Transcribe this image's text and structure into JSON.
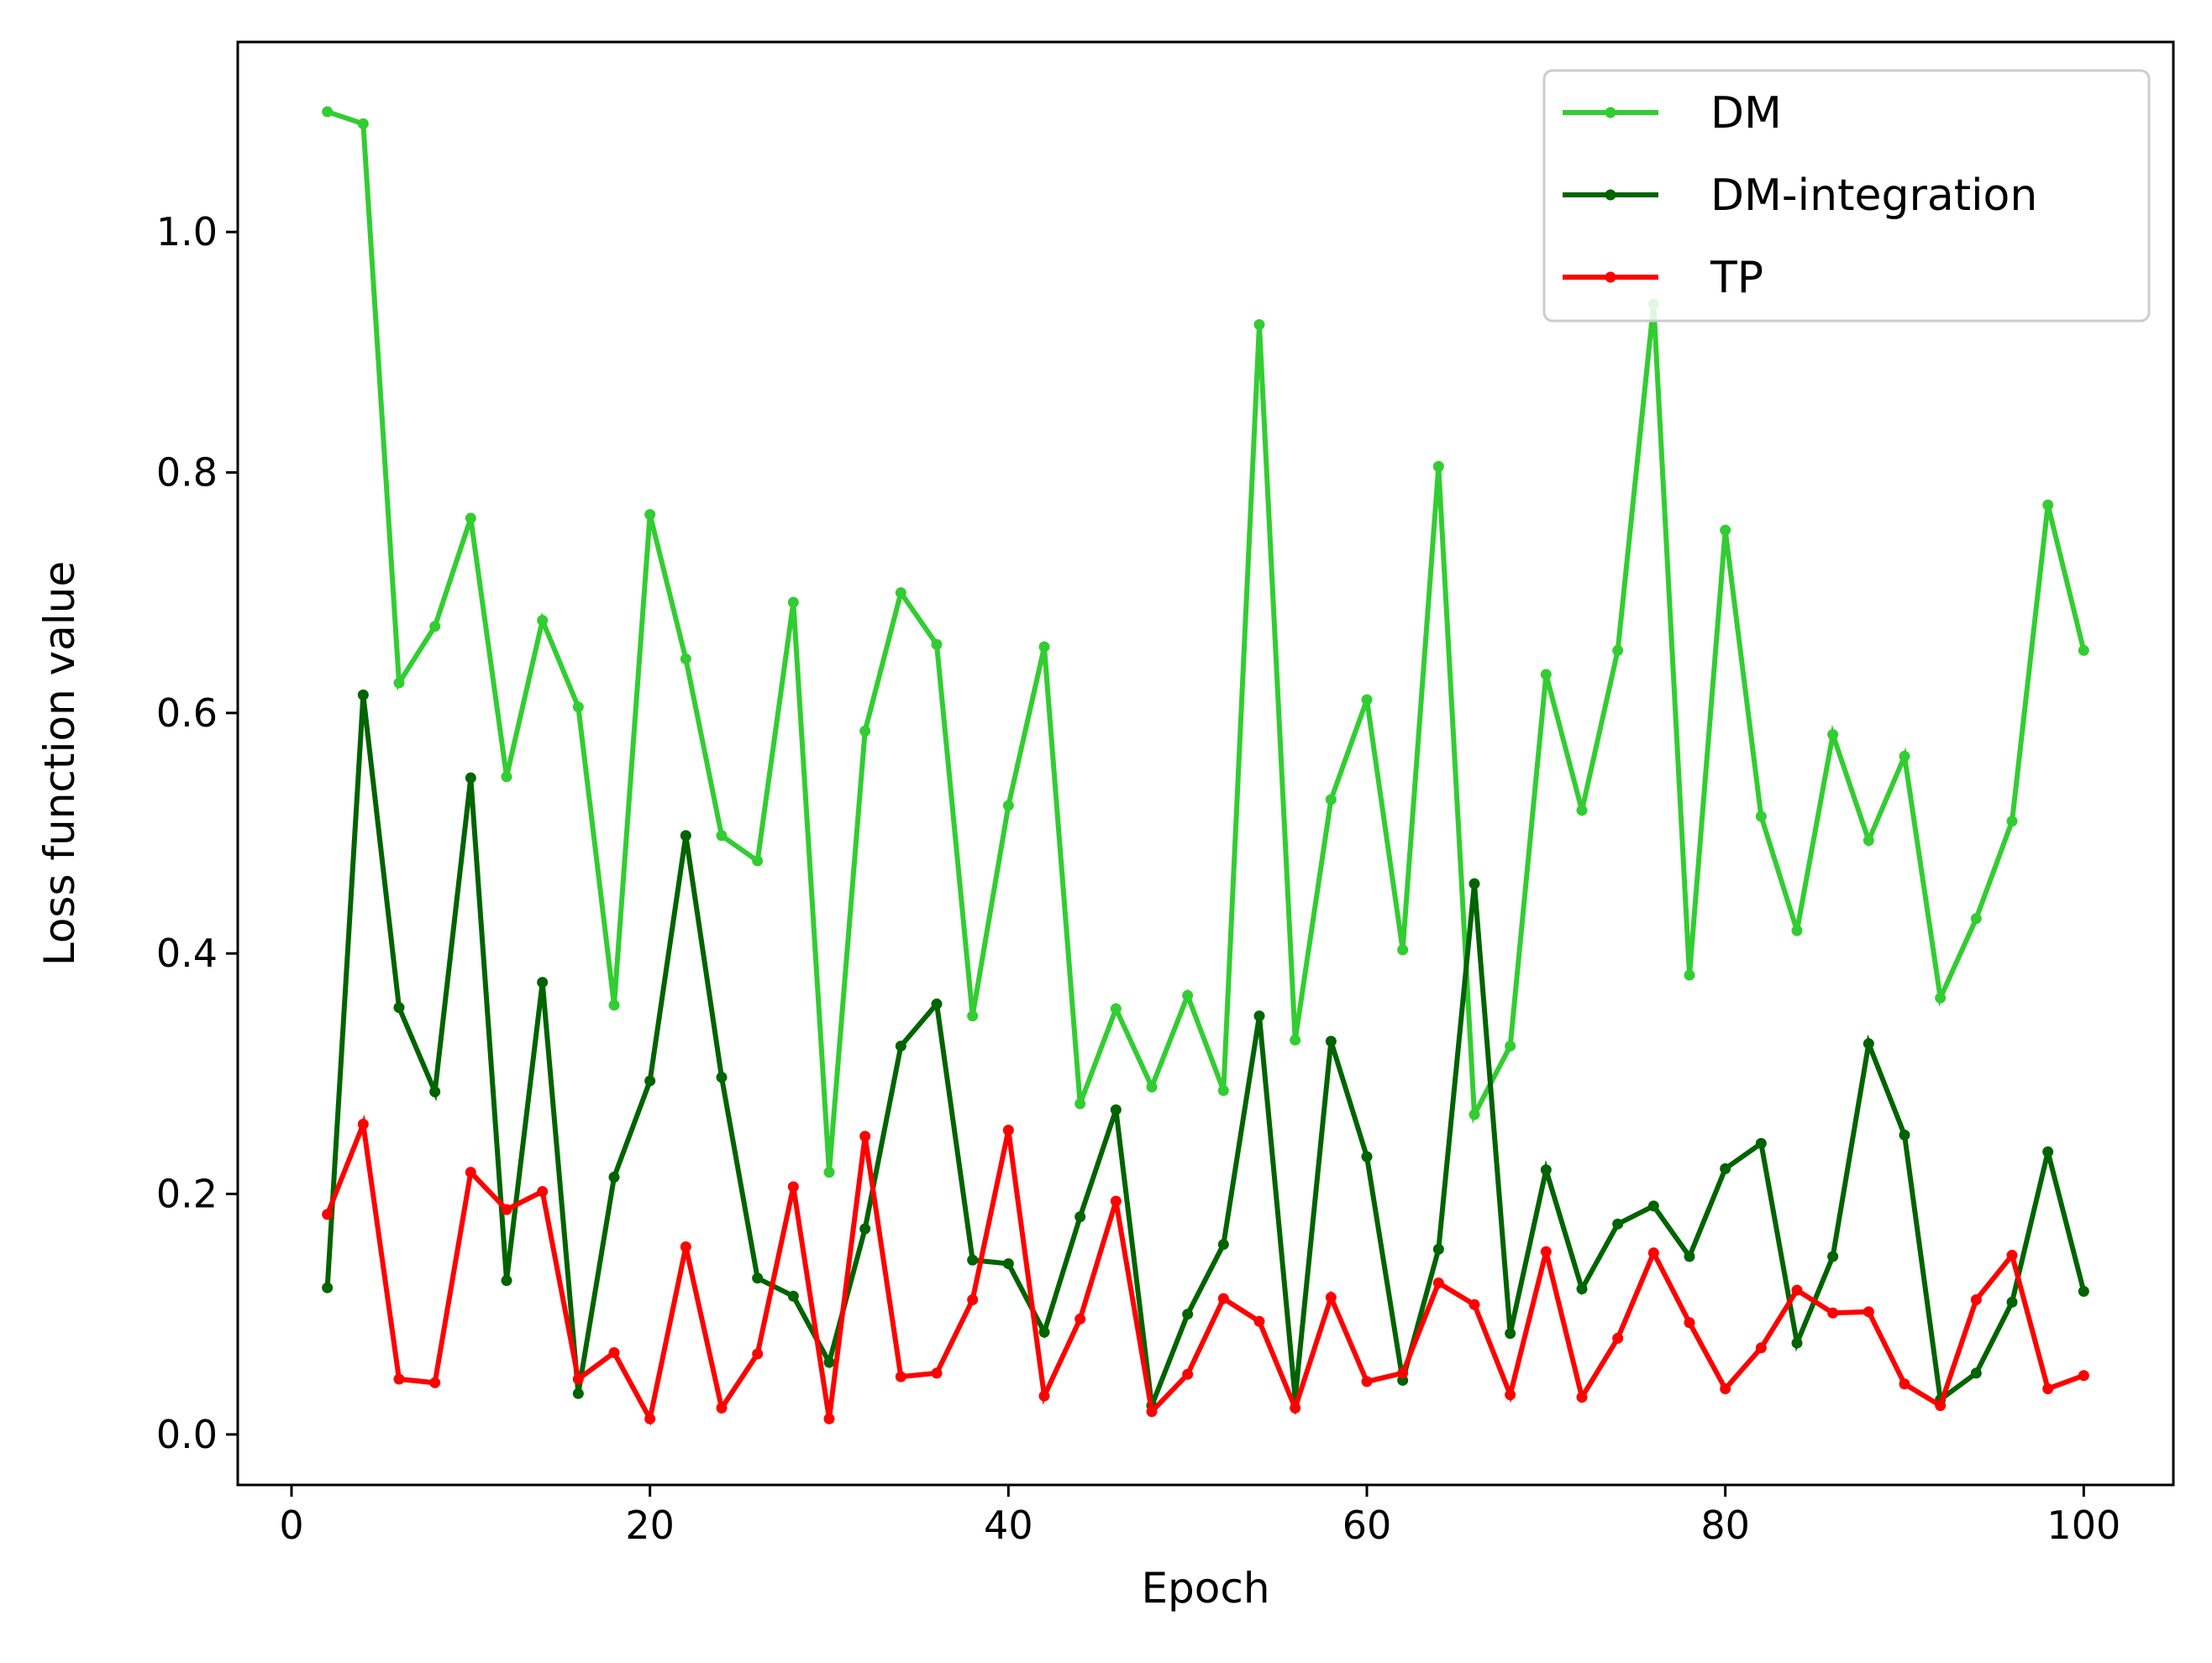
{
  "chart_data": {
    "type": "line",
    "title": "",
    "xlabel": "Epoch",
    "ylabel": "Loss function value",
    "xlim": [
      -3,
      105
    ],
    "ylim": [
      -0.042,
      1.158
    ],
    "xticks": [
      0,
      20,
      40,
      60,
      80,
      100
    ],
    "xtick_labels": [
      "0",
      "20",
      "40",
      "60",
      "80",
      "100"
    ],
    "yticks": [
      0.0,
      0.2,
      0.4,
      0.6,
      0.8,
      1.0
    ],
    "ytick_labels": [
      "0.0",
      "0.2",
      "0.4",
      "0.6",
      "0.8",
      "1.0"
    ],
    "grid": false,
    "legend_position": "top-right",
    "x": [
      2,
      4,
      6,
      8,
      10,
      12,
      14,
      16,
      18,
      20,
      22,
      24,
      26,
      28,
      30,
      32,
      34,
      36,
      38,
      40,
      42,
      44,
      46,
      48,
      50,
      52,
      54,
      56,
      58,
      60,
      62,
      64,
      66,
      68,
      70,
      72,
      74,
      76,
      78,
      80,
      82,
      84,
      86,
      88,
      90,
      92,
      94,
      96,
      98,
      100
    ],
    "series": [
      {
        "name": "DM",
        "color": "#32cd32",
        "values": [
          1.1,
          1.09,
          0.625,
          0.672,
          0.762,
          0.547,
          0.677,
          0.605,
          0.357,
          0.765,
          0.645,
          0.498,
          0.477,
          0.692,
          0.218,
          0.585,
          0.7,
          0.657,
          0.348,
          0.523,
          0.655,
          0.275,
          0.354,
          0.289,
          0.365,
          0.286,
          0.923,
          0.328,
          0.528,
          0.611,
          0.403,
          0.805,
          0.266,
          0.323,
          0.632,
          0.519,
          0.652,
          0.94,
          0.382,
          0.752,
          0.514,
          0.419,
          0.582,
          0.494,
          0.564,
          0.363,
          0.429,
          0.51,
          0.773,
          0.652
        ]
      },
      {
        "name": "DM-integration",
        "color": "#006400",
        "values": [
          0.122,
          0.615,
          0.355,
          0.285,
          0.546,
          0.128,
          0.376,
          0.034,
          0.214,
          0.294,
          0.498,
          0.297,
          0.13,
          0.115,
          0.06,
          0.171,
          0.323,
          0.358,
          0.145,
          0.142,
          0.085,
          0.181,
          0.27,
          0.024,
          0.1,
          0.158,
          0.348,
          0.03,
          0.327,
          0.231,
          0.045,
          0.154,
          0.458,
          0.084,
          0.22,
          0.121,
          0.175,
          0.19,
          0.148,
          0.221,
          0.242,
          0.076,
          0.148,
          0.325,
          0.249,
          0.029,
          0.051,
          0.11,
          0.235,
          0.119
        ]
      },
      {
        "name": "TP",
        "color": "#ff0000",
        "values": [
          0.183,
          0.258,
          0.046,
          0.043,
          0.218,
          0.187,
          0.202,
          0.046,
          0.068,
          0.013,
          0.156,
          0.022,
          0.067,
          0.206,
          0.013,
          0.248,
          0.048,
          0.051,
          0.112,
          0.253,
          0.032,
          0.096,
          0.194,
          0.019,
          0.05,
          0.113,
          0.094,
          0.022,
          0.114,
          0.044,
          0.051,
          0.126,
          0.108,
          0.033,
          0.152,
          0.031,
          0.08,
          0.151,
          0.093,
          0.038,
          0.072,
          0.12,
          0.101,
          0.102,
          0.042,
          0.024,
          0.112,
          0.149,
          0.038,
          0.049
        ]
      }
    ]
  }
}
